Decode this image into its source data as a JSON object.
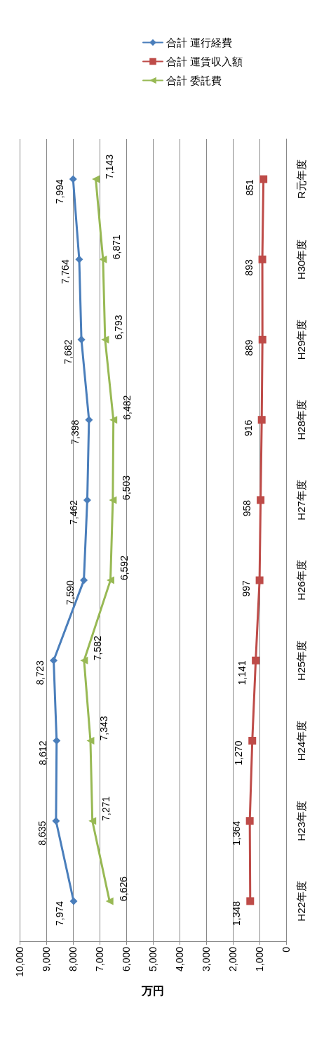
{
  "chart_data": {
    "type": "line",
    "orientation": "horizontal",
    "categories": [
      "R元年度",
      "H30年度",
      "H29年度",
      "H28年度",
      "H27年度",
      "H26年度",
      "H25年度",
      "H24年度",
      "H23年度",
      "H22年度"
    ],
    "xlabel": "万円",
    "xlim": [
      10000,
      0
    ],
    "xticks": [
      {
        "value": 10000,
        "label": "10,000"
      },
      {
        "value": 9000,
        "label": "9,000"
      },
      {
        "value": 8000,
        "label": "8,000"
      },
      {
        "value": 7000,
        "label": "7,000"
      },
      {
        "value": 6000,
        "label": "6,000"
      },
      {
        "value": 5000,
        "label": "5,000"
      },
      {
        "value": 4000,
        "label": "4,000"
      },
      {
        "value": 3000,
        "label": "3,000"
      },
      {
        "value": 2000,
        "label": "2,000"
      },
      {
        "value": 1000,
        "label": "1,000"
      },
      0
    ],
    "grid": "x",
    "legend": "top",
    "series": [
      {
        "name": "合計 運行経費",
        "color": "#4a7ebb",
        "marker": "diamond",
        "values": [
          7994,
          7764,
          7682,
          7398,
          7462,
          7590,
          8723,
          8612,
          8635,
          7974
        ],
        "value_labels": [
          "7,994",
          "7,764",
          "7,682",
          "7,398",
          "7,462",
          "7,590",
          "8,723",
          "8,612",
          "8,635",
          "7,974"
        ]
      },
      {
        "name": "合計 運賃収入額",
        "color": "#be4b48",
        "marker": "square",
        "values": [
          851,
          893,
          889,
          916,
          958,
          997,
          1141,
          1270,
          1364,
          1348
        ],
        "value_labels": [
          "851",
          "893",
          "889",
          "916",
          "958",
          "997",
          "1,141",
          "1,270",
          "1,364",
          "1,348"
        ]
      },
      {
        "name": "合計 委託費",
        "color": "#98b954",
        "marker": "triangle",
        "values": [
          7143,
          6871,
          6793,
          6482,
          6503,
          6592,
          7582,
          7343,
          7271,
          6626
        ],
        "value_labels": [
          "7,143",
          "6,871",
          "6,793",
          "6,482",
          "6,503",
          "6,592",
          "7,582",
          "7,343",
          "7,271",
          "6,626"
        ]
      }
    ]
  }
}
